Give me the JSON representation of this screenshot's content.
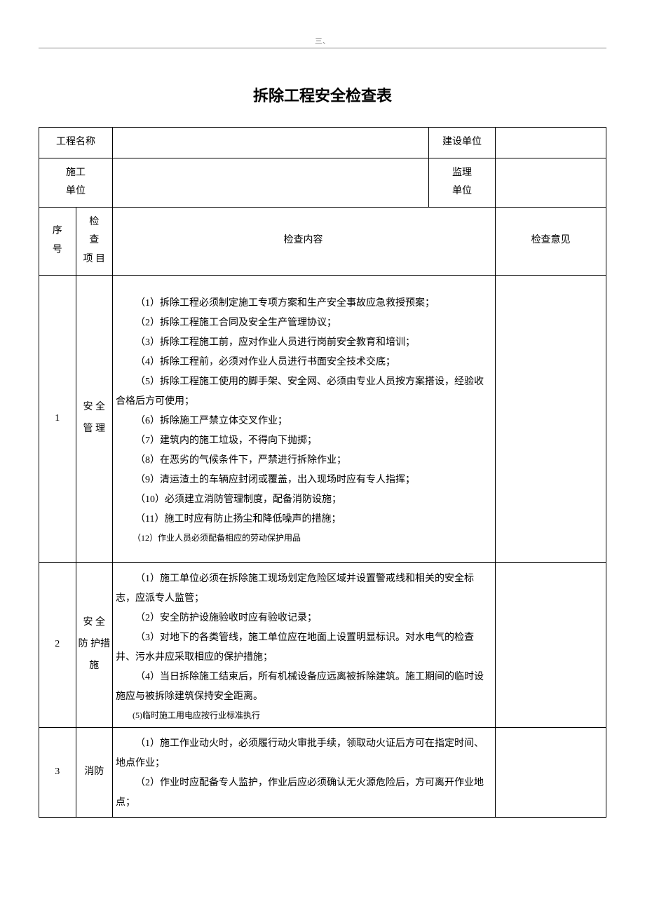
{
  "header": {
    "marker": "三、",
    "title": "拆除工程安全检查表"
  },
  "info_rows": {
    "project_name_label": "工程名称",
    "project_name_value": "",
    "build_unit_label": "建设单位",
    "build_unit_value": "",
    "construction_unit_label_l1": "施工",
    "construction_unit_label_l2": "单位",
    "construction_unit_value": "",
    "supervision_unit_label_l1": "监理",
    "supervision_unit_label_l2": "单位",
    "supervision_unit_value": ""
  },
  "columns": {
    "seq_l1": "序",
    "seq_l2": "号",
    "item_l1": "检",
    "item_l2": "查",
    "item_l3": "项  目",
    "content": "检查内容",
    "opinion": "检查意见"
  },
  "rows": [
    {
      "seq": "1",
      "item": "安 全 管 理",
      "content": [
        "（1）拆除工程必须制定施工专项方案和生产安全事故应急救授预案；",
        "（2）拆除工程施工合同及安全生产管理协议；",
        "（3）拆除工程施工前，应对作业人员进行岗前安全教育和培训；",
        "（4）拆除工程前，必须对作业人员进行书面安全技术交底；",
        "（5）拆除工程施工使用的脚手架、安全网、必须由专业人员按方案搭设，经验收合格后方可使用；",
        "（6）拆除施工严禁立体交叉作业；",
        "（7）建筑内的施工垃圾，不得向下抛掷；",
        "（8）在恶劣的气候条件下，严禁进行拆除作业；",
        "（9）清运渣土的车辆应封闭或覆盖，出入现场时应有专人指挥；",
        "（10）必须建立消防管理制度，配备消防设施；",
        "（11）施工时应有防止扬尘和降低噪声的措施；",
        "（12）作业人员必须配备相应的劳动保护用品"
      ],
      "opinion": ""
    },
    {
      "seq": "2",
      "item": "安  全 防 护措施",
      "content": [
        "（1）施工单位必须在拆除施工现场划定危险区域并设置警戒线和相关的安全标志，应派专人监管；",
        "（2）安全防护设施验收时应有验收记录；",
        "（3）对地下的各类管线，施工单位应在地面上设置明显标识。对水电气的检查井、污水井应采取相应的保护措施；",
        "（4）当日拆除施工结束后，所有机械设备应远离被拆除建筑。施工期间的临时设施应与被拆除建筑保持安全距离。",
        "(5)临时施工用电应按行业标准执行"
      ],
      "opinion": ""
    },
    {
      "seq": "3",
      "item": "消防",
      "content": [
        "（1）施工作业动火时，必须履行动火审批手续，领取动火证后方可在指定时间、地点作业；",
        "（2）作业时应配备专人监护，作业后应必须确认无火源危险后，方可离开作业地点；"
      ],
      "opinion": ""
    }
  ]
}
